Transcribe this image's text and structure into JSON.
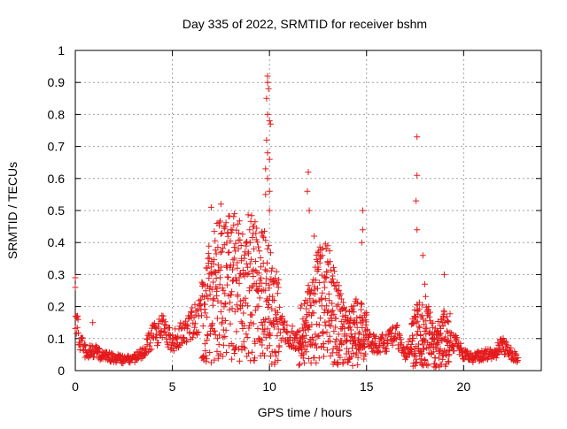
{
  "chart_data": {
    "type": "scatter",
    "title": "Day 335 of 2022, SRMTID for receiver bshm",
    "xlabel": "GPS time / hours",
    "ylabel": "SRMTID / TECUs",
    "xlim": [
      0,
      24
    ],
    "ylim": [
      0,
      1
    ],
    "x_ticks": [
      0,
      5,
      10,
      15,
      20
    ],
    "x_tick_labels": [
      "0",
      "5",
      "10",
      "15",
      "20"
    ],
    "y_ticks": [
      0,
      0.1,
      0.2,
      0.3,
      0.4,
      0.5,
      0.6,
      0.7,
      0.8,
      0.9,
      1
    ],
    "y_tick_labels": [
      "0",
      "0.1",
      "0.2",
      "0.3",
      "0.4",
      "0.5",
      "0.6",
      "0.7",
      "0.8",
      "0.9",
      "1"
    ],
    "grid": true,
    "marker": "+",
    "series": [
      {
        "name": "SRMTID",
        "color": "#e41a1c",
        "baseline_profile": [
          [
            0.0,
            0.2
          ],
          [
            0.2,
            0.1
          ],
          [
            0.5,
            0.06
          ],
          [
            1.0,
            0.06
          ],
          [
            1.5,
            0.045
          ],
          [
            2.0,
            0.04
          ],
          [
            2.5,
            0.035
          ],
          [
            3.0,
            0.035
          ],
          [
            3.5,
            0.06
          ],
          [
            4.0,
            0.11
          ],
          [
            4.5,
            0.13
          ],
          [
            5.0,
            0.09
          ],
          [
            5.5,
            0.12
          ],
          [
            6.0,
            0.15
          ],
          [
            6.5,
            0.17
          ],
          [
            7.0,
            0.22
          ],
          [
            7.5,
            0.25
          ],
          [
            8.0,
            0.26
          ],
          [
            8.5,
            0.25
          ],
          [
            9.0,
            0.26
          ],
          [
            9.5,
            0.25
          ],
          [
            10.0,
            0.22
          ],
          [
            10.5,
            0.15
          ],
          [
            11.0,
            0.11
          ],
          [
            11.5,
            0.1
          ],
          [
            12.0,
            0.14
          ],
          [
            12.5,
            0.2
          ],
          [
            13.0,
            0.22
          ],
          [
            13.5,
            0.15
          ],
          [
            14.0,
            0.1
          ],
          [
            14.5,
            0.12
          ],
          [
            15.0,
            0.1
          ],
          [
            15.5,
            0.08
          ],
          [
            16.0,
            0.09
          ],
          [
            16.5,
            0.12
          ],
          [
            17.0,
            0.05
          ],
          [
            17.5,
            0.11
          ],
          [
            18.0,
            0.13
          ],
          [
            18.5,
            0.07
          ],
          [
            19.0,
            0.1
          ],
          [
            19.5,
            0.09
          ],
          [
            20.0,
            0.05
          ],
          [
            20.5,
            0.04
          ],
          [
            21.0,
            0.05
          ],
          [
            21.5,
            0.05
          ],
          [
            22.0,
            0.08
          ],
          [
            22.5,
            0.05
          ],
          [
            22.8,
            0.035
          ]
        ],
        "notable_points": [
          [
            0.0,
            0.29
          ],
          [
            0.0,
            0.26
          ],
          [
            0.1,
            0.17
          ],
          [
            0.9,
            0.15
          ],
          [
            7.0,
            0.51
          ],
          [
            7.3,
            0.46
          ],
          [
            7.5,
            0.52
          ],
          [
            8.2,
            0.49
          ],
          [
            9.0,
            0.4
          ],
          [
            9.2,
            0.38
          ],
          [
            9.6,
            0.43
          ],
          [
            9.9,
            0.92
          ],
          [
            9.9,
            0.9
          ],
          [
            9.95,
            0.88
          ],
          [
            9.85,
            0.85
          ],
          [
            9.9,
            0.8
          ],
          [
            10.0,
            0.78
          ],
          [
            10.05,
            0.77
          ],
          [
            9.85,
            0.72
          ],
          [
            9.9,
            0.68
          ],
          [
            10.0,
            0.66
          ],
          [
            9.8,
            0.63
          ],
          [
            9.9,
            0.6
          ],
          [
            10.0,
            0.56
          ],
          [
            9.8,
            0.55
          ],
          [
            10.0,
            0.5
          ],
          [
            12.0,
            0.62
          ],
          [
            11.95,
            0.56
          ],
          [
            12.05,
            0.5
          ],
          [
            12.3,
            0.42
          ],
          [
            12.6,
            0.36
          ],
          [
            13.0,
            0.39
          ],
          [
            14.8,
            0.5
          ],
          [
            14.8,
            0.44
          ],
          [
            14.75,
            0.4
          ],
          [
            17.6,
            0.73
          ],
          [
            17.6,
            0.61
          ],
          [
            17.55,
            0.53
          ],
          [
            17.6,
            0.44
          ],
          [
            17.9,
            0.36
          ],
          [
            19.0,
            0.3
          ],
          [
            18.0,
            0.27
          ]
        ]
      }
    ]
  }
}
